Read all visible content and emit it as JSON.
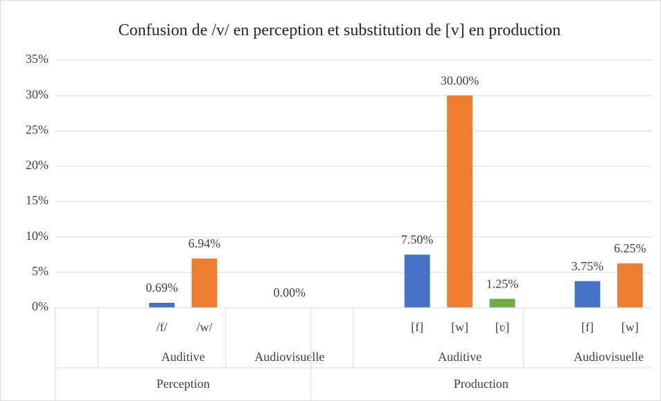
{
  "chart_data": {
    "type": "bar",
    "title": "Confusion de /v/ en perception et substitution de [v] en production",
    "ylim": [
      0,
      35
    ],
    "yticks": [
      {
        "value": 0,
        "label": "0%"
      },
      {
        "value": 5,
        "label": "5%"
      },
      {
        "value": 10,
        "label": "10%"
      },
      {
        "value": 15,
        "label": "15%"
      },
      {
        "value": 20,
        "label": "20%"
      },
      {
        "value": 25,
        "label": "25%"
      },
      {
        "value": 30,
        "label": "30%"
      },
      {
        "value": 35,
        "label": "35%"
      }
    ],
    "grid": true,
    "groups": [
      {
        "name": "Perception",
        "subgroups": [
          {
            "name": "Auditive",
            "categories": [
              "/f/",
              "/w/"
            ],
            "values": [
              0.69,
              6.94
            ],
            "value_labels": [
              "0.69%",
              "6.94%"
            ],
            "colors": [
              "#4472c4",
              "#ed7d31"
            ]
          },
          {
            "name": "Audiovisuelle",
            "categories": [
              null
            ],
            "values": [
              0
            ],
            "value_labels": [
              "0.00%"
            ],
            "colors": [
              "#4472c4"
            ]
          }
        ]
      },
      {
        "name": "Production",
        "subgroups": [
          {
            "name": "Auditive",
            "categories": [
              "[f]",
              "[w]",
              "[ʋ]"
            ],
            "values": [
              7.5,
              30,
              1.25
            ],
            "value_labels": [
              "7.50%",
              "30.00%",
              "1.25%"
            ],
            "colors": [
              "#4472c4",
              "#ed7d31",
              "#70ad47"
            ]
          },
          {
            "name": "Audiovisuelle",
            "categories": [
              "[f]",
              "[w]"
            ],
            "values": [
              3.75,
              6.25
            ],
            "value_labels": [
              "3.75%",
              "6.25%"
            ],
            "colors": [
              "#4472c4",
              "#ed7d31"
            ]
          }
        ]
      }
    ]
  }
}
